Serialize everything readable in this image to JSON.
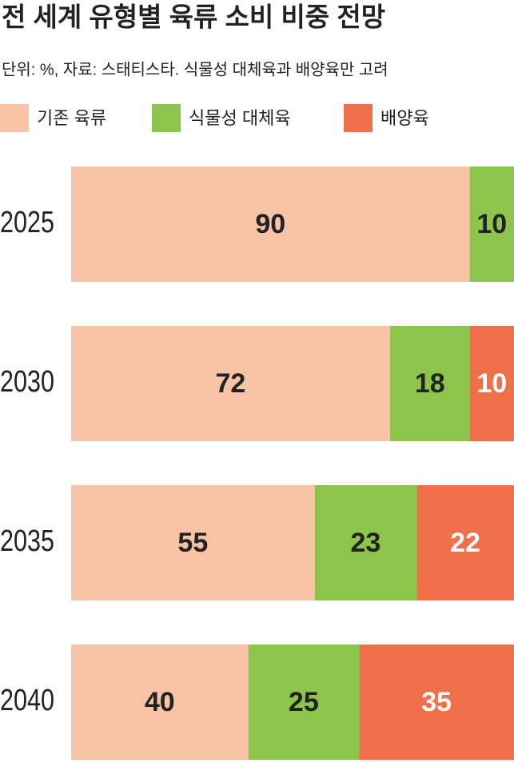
{
  "chart_data": {
    "type": "stacked-bar-horizontal",
    "title": "전 세계 유형별 육류 소비 비중 전망",
    "subtitle": "단위: %, 자료: 스태티스타. 식물성 대체육과 배양육만 고려",
    "categories": [
      "2025",
      "2030",
      "2035",
      "2040"
    ],
    "series": [
      {
        "name": "기존 육류",
        "color": "#f9c4a6",
        "label_color": "#222222",
        "values": [
          90,
          72,
          55,
          40
        ]
      },
      {
        "name": "식물성 대체육",
        "color": "#8dc54c",
        "label_color": "#222222",
        "values": [
          10,
          18,
          23,
          25
        ]
      },
      {
        "name": "배양육",
        "color": "#f0704a",
        "label_color": "#ffffff",
        "values": [
          null,
          10,
          22,
          35
        ]
      }
    ],
    "xlim": [
      0,
      100
    ]
  }
}
